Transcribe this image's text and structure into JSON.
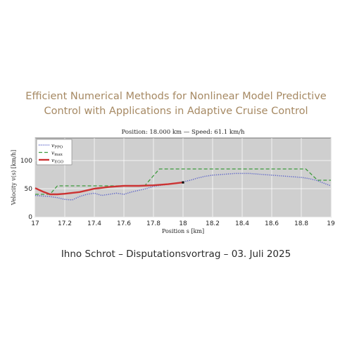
{
  "slide": {
    "title_line1": "Efficient Numerical Methods for Nonlinear Model Predictive",
    "title_line2": "Control with Applications in Adaptive Cruise Control",
    "footer": "Ihno Schrot – Disputationsvortrag – 03. Juli 2025"
  },
  "colors": {
    "title": "#a68963",
    "vppo": "#5b63c9",
    "vmax": "#3e9b3e",
    "vego": "#cc3333",
    "plot_bg": "#cfcfcf"
  },
  "chart_data": {
    "type": "line",
    "title": "Position: 18.000 km — Speed: 61.1 km/h",
    "xlabel": "Position s [km]",
    "ylabel": "Velocity v(s) [km/h]",
    "xlim": [
      17,
      19
    ],
    "ylim": [
      0,
      140
    ],
    "xticks": [
      "17",
      "17.2",
      "17.4",
      "17.6",
      "17.8",
      "18",
      "18.2",
      "18.4",
      "18.6",
      "18.8",
      "19"
    ],
    "yticks": [
      "0",
      "50",
      "100"
    ],
    "grid": true,
    "legend_position": "top-left",
    "series": [
      {
        "name": "vPPO",
        "sub": "PPO",
        "style": "dotted",
        "color": "#5b63c9",
        "x": [
          17.0,
          17.05,
          17.1,
          17.15,
          17.2,
          17.25,
          17.3,
          17.35,
          17.4,
          17.45,
          17.5,
          17.55,
          17.6,
          17.65,
          17.7,
          17.75,
          17.8,
          17.85,
          17.9,
          17.95,
          18.0,
          18.05,
          18.1,
          18.15,
          18.2,
          18.25,
          18.3,
          18.35,
          18.4,
          18.45,
          18.5,
          18.55,
          18.6,
          18.65,
          18.7,
          18.75,
          18.8,
          18.85,
          18.9,
          18.95,
          19.0
        ],
        "y": [
          38,
          37,
          36,
          34,
          31,
          30,
          36,
          40,
          42,
          38,
          40,
          42,
          40,
          44,
          47,
          50,
          54,
          56,
          58,
          60,
          62,
          65,
          69,
          72,
          74,
          75,
          76,
          77,
          77,
          77,
          76,
          75,
          74,
          73,
          72,
          71,
          70,
          68,
          65,
          60,
          55
        ]
      },
      {
        "name": "vmax",
        "sub": "max",
        "style": "dashed",
        "color": "#3e9b3e",
        "x": [
          17.0,
          17.05,
          17.1,
          17.15,
          17.74,
          17.79,
          17.84,
          18.83,
          18.87,
          18.91,
          19.0
        ],
        "y": [
          40,
          40,
          40,
          55,
          55,
          70,
          85,
          85,
          75,
          65,
          65
        ]
      },
      {
        "name": "vEGO",
        "sub": "EGO",
        "style": "solid",
        "color": "#cc3333",
        "x": [
          17.0,
          17.05,
          17.1,
          17.15,
          17.2,
          17.3,
          17.4,
          17.5,
          17.6,
          17.7,
          17.8,
          17.9,
          18.0
        ],
        "y": [
          51,
          45,
          40,
          40,
          41,
          44,
          50,
          53,
          55,
          55,
          56,
          58,
          61.1
        ]
      }
    ],
    "marker": {
      "x": 18.0,
      "y": 61.1
    }
  }
}
